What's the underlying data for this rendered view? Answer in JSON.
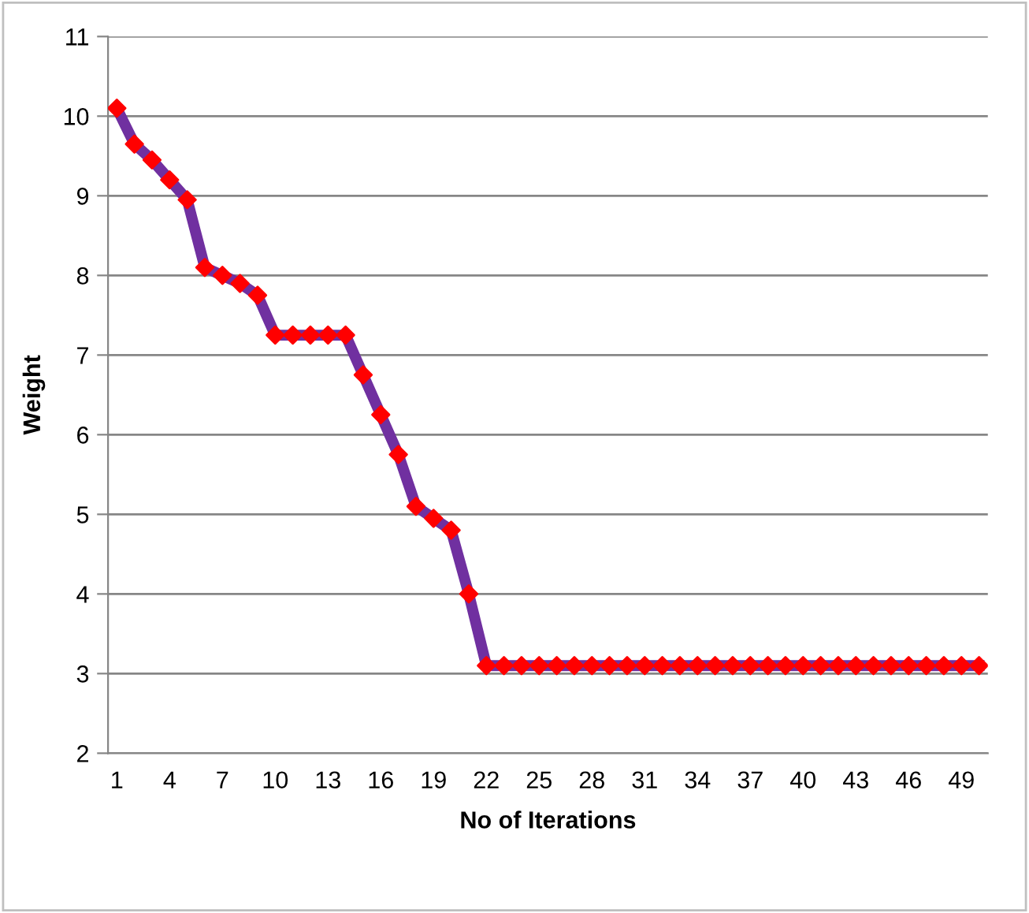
{
  "chart_data": {
    "type": "line",
    "xlabel": "No of Iterations",
    "ylabel": "Weight",
    "categories": [
      "1",
      null,
      null,
      "4",
      null,
      null,
      "7",
      null,
      null,
      "10",
      null,
      null,
      "13",
      null,
      null,
      "16",
      null,
      null,
      "19",
      null,
      null,
      "22",
      null,
      null,
      "25",
      null,
      null,
      "28",
      null,
      null,
      "31",
      null,
      null,
      "34",
      null,
      null,
      "37",
      null,
      null,
      "40",
      null,
      null,
      "43",
      null,
      null,
      "46",
      null,
      null,
      "49",
      null
    ],
    "series": [
      {
        "color": "#7030a0",
        "colors": [
          "#ff0000",
          "#ff0000",
          "#ff0000",
          "#ff0000",
          "#ff0000",
          "#ff0000",
          "#ff0000",
          "#ff0000",
          "#ff0000",
          "#ff0000",
          "#ff0000",
          "#ff0000",
          "#ff0000",
          "#ff0000",
          "#ff0000",
          "#ff0000",
          "#ff0000",
          "#ff0000",
          "#ff0000",
          "#ff0000",
          "#ff0000",
          "#ff0000",
          "#ff0000",
          "#ff0000",
          "#ff0000",
          "#ff0000",
          "#ff0000",
          "#ff0000",
          "#ff0000",
          "#ff0000",
          "#ff0000",
          "#ff0000",
          "#ff0000",
          "#ff0000",
          "#ff0000",
          "#ff0000",
          "#ff0000",
          "#ff0000",
          "#ff0000",
          "#ff0000",
          "#ff0000",
          "#ff0000",
          "#ff0000",
          "#ff0000",
          "#ff0000",
          "#ff0000",
          "#ff0000",
          "#ff0000",
          "#ff0000",
          "#ff0000"
        ],
        "values": [
          10.1,
          9.65,
          9.45,
          9.2,
          8.95,
          8.1,
          8.0,
          7.9,
          7.75,
          7.25,
          7.25,
          7.25,
          7.25,
          7.25,
          6.75,
          6.25,
          5.75,
          5.1,
          4.95,
          4.8,
          4.0,
          3.1,
          3.1,
          3.1,
          3.1,
          3.1,
          3.1,
          3.1,
          3.1,
          3.1,
          3.1,
          3.1,
          3.1,
          3.1,
          3.1,
          3.1,
          3.1,
          3.1,
          3.1,
          3.1,
          3.1,
          3.1,
          3.1,
          3.1,
          3.1,
          3.1,
          3.1,
          3.1,
          3.1,
          3.1
        ]
      }
    ],
    "ylim": [
      2,
      11
    ],
    "yticks": [
      2,
      3,
      4,
      5,
      6,
      7,
      8,
      9,
      10,
      11
    ],
    "grid": "y",
    "marker": "diamond",
    "line_style": "solid",
    "legend": false
  }
}
